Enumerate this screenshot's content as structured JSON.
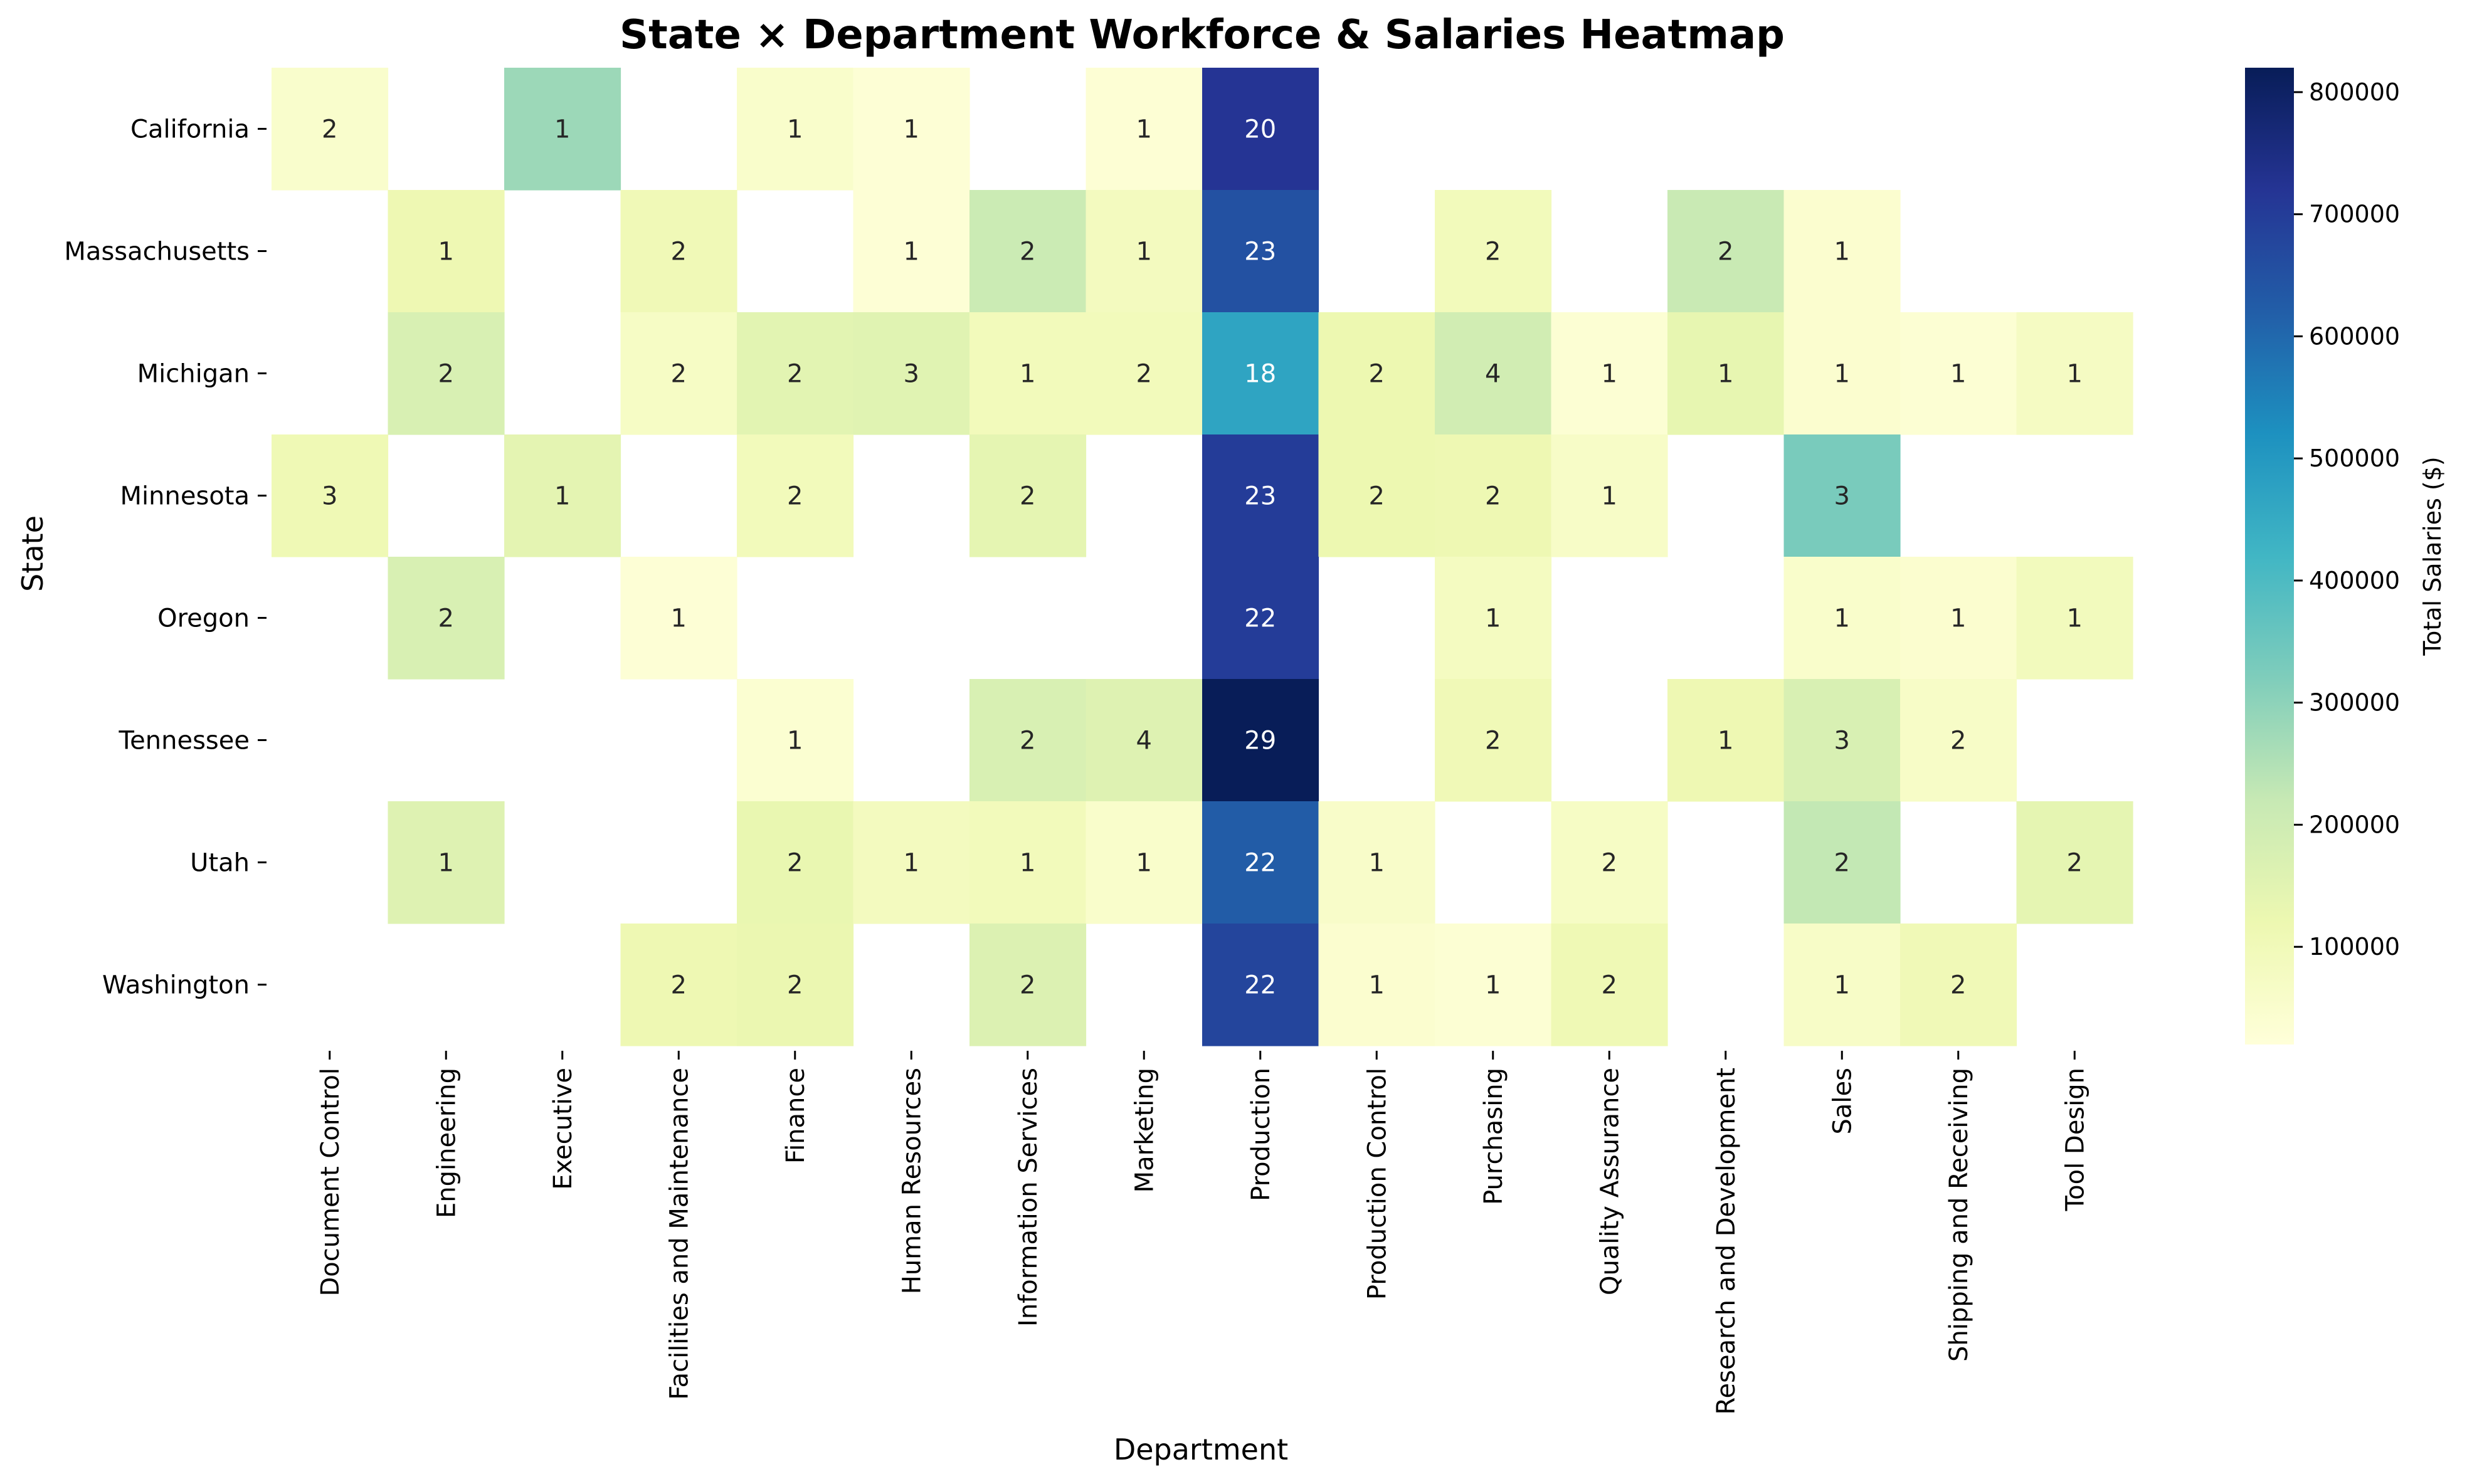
{
  "chart_data": {
    "type": "heatmap",
    "title": "State × Department Workforce & Salaries Heatmap",
    "xlabel": "Department",
    "ylabel": "State",
    "colorbar_label": "Total Salaries ($)",
    "colorbar_ticks": [
      "100000",
      "200000",
      "300000",
      "400000",
      "500000",
      "600000",
      "700000",
      "800000"
    ],
    "colorbar_range": [
      20000,
      820000
    ],
    "colormap": "YlGnBu",
    "rows": [
      "California",
      "Massachusetts",
      "Michigan",
      "Minnesota",
      "Oregon",
      "Tennessee",
      "Utah",
      "Washington"
    ],
    "columns": [
      "Document Control",
      "Engineering",
      "Executive",
      "Facilities and Maintenance",
      "Finance",
      "Human Resources",
      "Information Services",
      "Marketing",
      "Production",
      "Production Control",
      "Purchasing",
      "Quality Assurance",
      "Research and Development",
      "Sales",
      "Shipping and Receiving",
      "Tool Design"
    ],
    "counts": [
      [
        2,
        null,
        1,
        null,
        1,
        1,
        null,
        1,
        20,
        null,
        null,
        null,
        null,
        null,
        null,
        null
      ],
      [
        null,
        1,
        null,
        2,
        null,
        1,
        2,
        1,
        23,
        null,
        2,
        null,
        2,
        1,
        null,
        null
      ],
      [
        null,
        2,
        null,
        2,
        2,
        3,
        1,
        2,
        18,
        2,
        4,
        1,
        1,
        1,
        1,
        1
      ],
      [
        3,
        null,
        1,
        null,
        2,
        null,
        2,
        null,
        23,
        2,
        2,
        1,
        null,
        3,
        null,
        null
      ],
      [
        null,
        2,
        null,
        1,
        null,
        null,
        null,
        null,
        22,
        null,
        1,
        null,
        null,
        1,
        1,
        1
      ],
      [
        null,
        null,
        null,
        null,
        1,
        null,
        2,
        4,
        29,
        null,
        2,
        null,
        1,
        3,
        2,
        null
      ],
      [
        null,
        1,
        null,
        null,
        2,
        1,
        1,
        1,
        22,
        1,
        null,
        2,
        null,
        2,
        null,
        2
      ],
      [
        null,
        null,
        null,
        2,
        2,
        null,
        2,
        null,
        22,
        1,
        1,
        2,
        null,
        1,
        2,
        null
      ]
    ],
    "salaries": [
      [
        52000,
        null,
        280000,
        null,
        55000,
        30000,
        null,
        32000,
        720000,
        null,
        null,
        null,
        null,
        null,
        null,
        null
      ],
      [
        null,
        115000,
        null,
        105000,
        null,
        30000,
        210000,
        85000,
        650000,
        null,
        95000,
        null,
        215000,
        45000,
        null,
        null
      ],
      [
        null,
        175000,
        null,
        70000,
        150000,
        155000,
        95000,
        95000,
        470000,
        120000,
        195000,
        35000,
        135000,
        45000,
        35000,
        75000
      ],
      [
        110000,
        null,
        145000,
        null,
        95000,
        null,
        140000,
        null,
        700000,
        120000,
        115000,
        65000,
        null,
        330000,
        null,
        null
      ],
      [
        null,
        175000,
        null,
        30000,
        null,
        null,
        null,
        null,
        700000,
        null,
        80000,
        null,
        null,
        55000,
        45000,
        90000
      ],
      [
        null,
        null,
        null,
        null,
        40000,
        null,
        175000,
        160000,
        820000,
        null,
        105000,
        null,
        115000,
        175000,
        65000,
        null
      ],
      [
        null,
        160000,
        null,
        null,
        130000,
        85000,
        95000,
        55000,
        625000,
        60000,
        null,
        70000,
        null,
        225000,
        null,
        140000
      ],
      [
        null,
        null,
        null,
        115000,
        125000,
        null,
        165000,
        null,
        680000,
        45000,
        35000,
        110000,
        null,
        65000,
        105000,
        null
      ]
    ]
  }
}
